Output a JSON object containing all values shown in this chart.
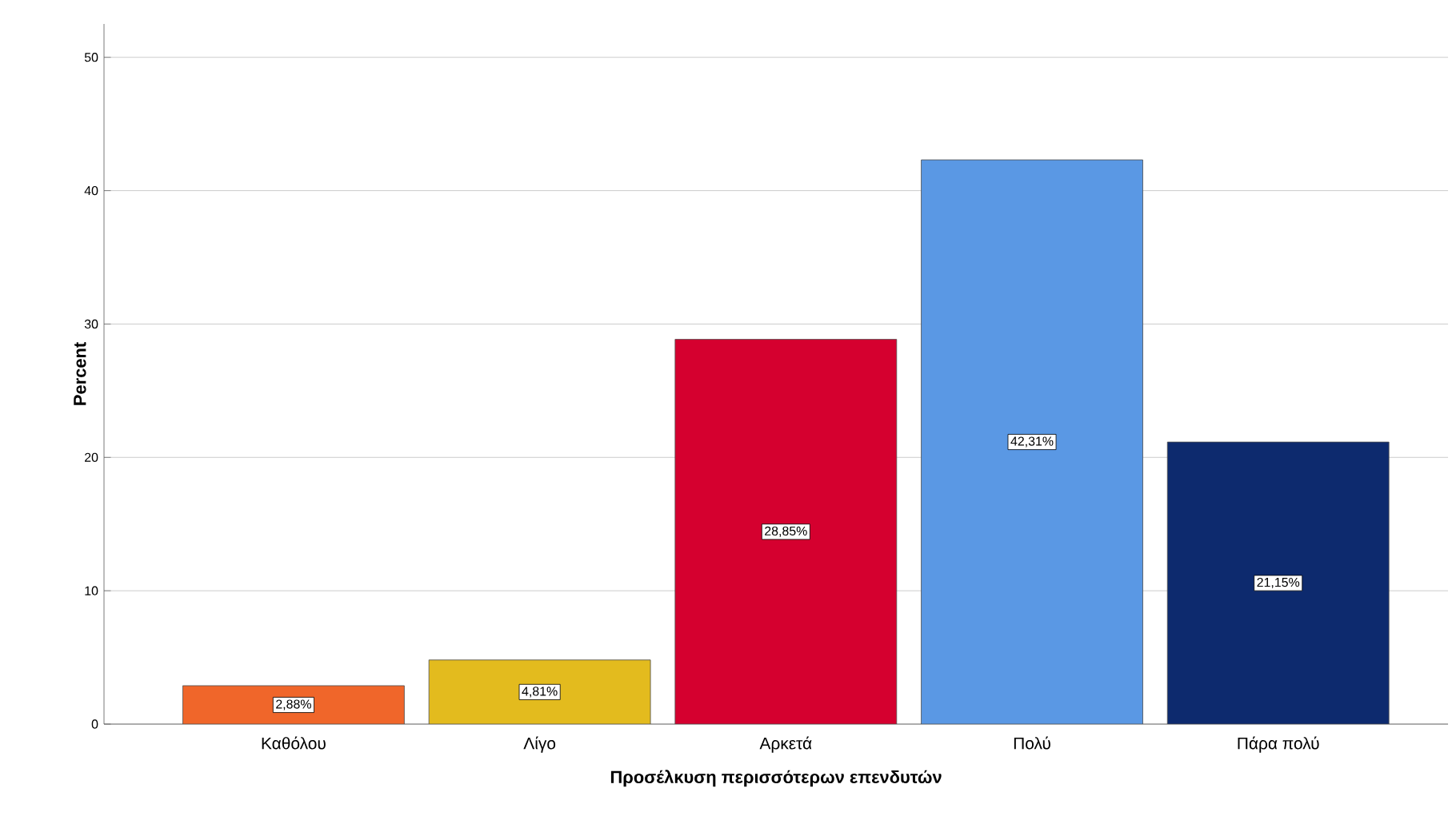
{
  "chart_data": {
    "type": "bar",
    "xlabel": "Προσέλκυση περισσότερων επενδυτών",
    "ylabel": "Percent",
    "categories": [
      "Καθόλου",
      "Λίγο",
      "Αρκετά",
      "Πολύ",
      "Πάρα πολύ"
    ],
    "values": [
      2.88,
      4.81,
      28.85,
      42.31,
      21.15
    ],
    "colors": [
      "#f0662a",
      "#e3bb1e",
      "#d5002f",
      "#5a98e4",
      "#0d2a6e"
    ],
    "value_labels": [
      "2,88%",
      "4,81%",
      "28,85%",
      "42,31%",
      "21,15%"
    ],
    "ylim": [
      0,
      52.5
    ],
    "yticks": [
      0,
      10,
      20,
      30,
      40,
      50
    ],
    "grid": "y"
  }
}
